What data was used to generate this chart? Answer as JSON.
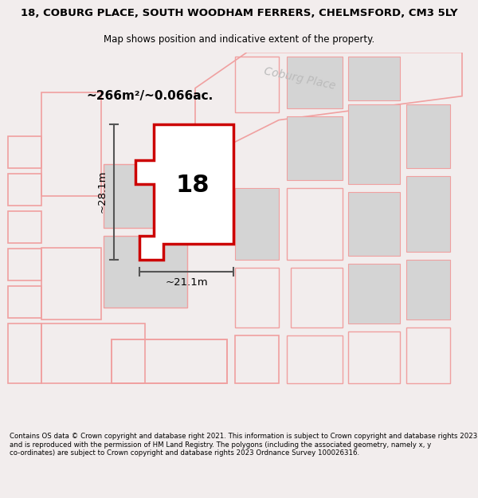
{
  "title_line1": "18, COBURG PLACE, SOUTH WOODHAM FERRERS, CHELMSFORD, CM3 5LY",
  "title_line2": "Map shows position and indicative extent of the property.",
  "footer_text": "Contains OS data © Crown copyright and database right 2021. This information is subject to Crown copyright and database rights 2023 and is reproduced with the permission of HM Land Registry. The polygons (including the associated geometry, namely x, y co-ordinates) are subject to Crown copyright and database rights 2023 Ordnance Survey 100026316.",
  "area_text": "~266m²/~0.066ac.",
  "street_label": "Coburg Place",
  "number_label": "18",
  "width_label": "~21.1m",
  "height_label": "~28.1m",
  "bg_color": "#f2eded",
  "map_bg": "#ffffff",
  "highlight_color": "#cc0000",
  "light_red": "#f0a0a0",
  "gray_fill": "#d4d4d4",
  "dark_gray": "#555555"
}
